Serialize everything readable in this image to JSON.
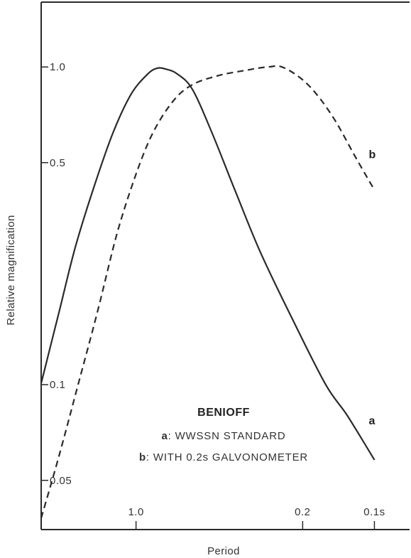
{
  "chart_data": {
    "type": "line",
    "xlabel": "Period",
    "ylabel": "Relative magnification",
    "x_scale": "log",
    "y_scale": "log",
    "x_direction": "reversed",
    "xlim": [
      2.5,
      0.08
    ],
    "ylim": [
      0.035,
      1.6
    ],
    "x_ticks": [
      {
        "value": 1.0,
        "label": "1.0"
      },
      {
        "value": 0.2,
        "label": "0.2"
      },
      {
        "value": 0.1,
        "label": "0.1s"
      }
    ],
    "y_ticks": [
      {
        "value": 1.0,
        "label": "1.0"
      },
      {
        "value": 0.5,
        "label": "0.5"
      },
      {
        "value": 0.1,
        "label": "0.1"
      },
      {
        "value": 0.05,
        "label": "0.05"
      }
    ],
    "series": [
      {
        "key": "a",
        "name": "WWSSN STANDARD",
        "style": "solid",
        "points": [
          [
            2.5,
            0.101
          ],
          [
            2.1,
            0.17
          ],
          [
            1.8,
            0.27
          ],
          [
            1.5,
            0.42
          ],
          [
            1.25,
            0.62
          ],
          [
            1.05,
            0.82
          ],
          [
            0.9,
            0.945
          ],
          [
            0.82,
            0.99
          ],
          [
            0.75,
            0.985
          ],
          [
            0.67,
            0.95
          ],
          [
            0.58,
            0.85
          ],
          [
            0.48,
            0.62
          ],
          [
            0.38,
            0.4
          ],
          [
            0.3,
            0.26
          ],
          [
            0.22,
            0.16
          ],
          [
            0.16,
            0.1
          ],
          [
            0.13,
            0.08
          ],
          [
            0.1,
            0.058
          ]
        ]
      },
      {
        "key": "b",
        "name": "WITH 0.2s GALVONOMETER",
        "style": "dashed",
        "points": [
          [
            2.5,
            0.038
          ],
          [
            2.1,
            0.06
          ],
          [
            1.75,
            0.1
          ],
          [
            1.45,
            0.17
          ],
          [
            1.2,
            0.3
          ],
          [
            1.0,
            0.46
          ],
          [
            0.85,
            0.62
          ],
          [
            0.7,
            0.78
          ],
          [
            0.58,
            0.88
          ],
          [
            0.45,
            0.94
          ],
          [
            0.35,
            0.975
          ],
          [
            0.28,
            1.0
          ],
          [
            0.24,
            0.995
          ],
          [
            0.19,
            0.88
          ],
          [
            0.15,
            0.7
          ],
          [
            0.12,
            0.52
          ],
          [
            0.1,
            0.41
          ]
        ]
      }
    ],
    "annotation": {
      "title": "BENIOFF",
      "lines": [
        {
          "key": "a",
          "text": ": WWSSN STANDARD"
        },
        {
          "key": "b",
          "text": ": WITH 0.2s GALVONOMETER"
        }
      ]
    },
    "grid": false,
    "colors": {
      "ink": "#2a2a2a"
    }
  }
}
